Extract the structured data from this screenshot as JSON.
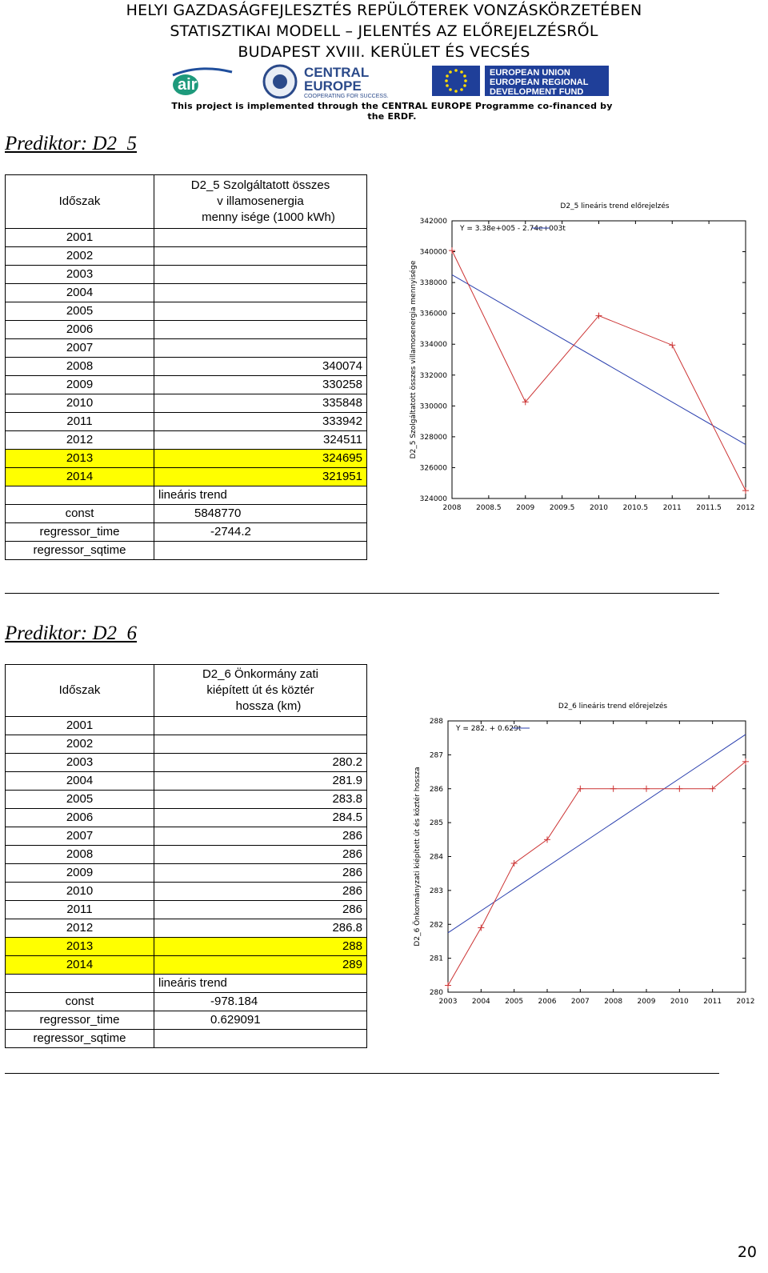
{
  "header": {
    "line1": "HELYI GAZDASÁGFEJLESZTÉS REPÜLŐTEREK VONZÁSKÖRZETÉBEN",
    "line2": "STATISZTIKAI MODELL – JELENTÉS AZ ELŐREJELZÉSRŐL",
    "line3": "BUDAPEST XVIII. KERÜLET ÉS VECSÉS",
    "logo_airled": "airLED",
    "logo_ce_1": "CENTRAL",
    "logo_ce_2": "EUROPE",
    "logo_ce_3": "COOPERATING FOR SUCCESS.",
    "logo_eu_1": "EUROPEAN UNION",
    "logo_eu_2": "EUROPEAN REGIONAL",
    "logo_eu_3": "DEVELOPMENT FUND",
    "footnote": "This project is implemented through the CENTRAL EUROPE Programme co-financed by the ERDF."
  },
  "section1": {
    "title": "Prediktor: D2_5",
    "table": {
      "col1_header": "Időszak",
      "col2_header_1": "D2_5 Szolgáltatott összes",
      "col2_header_2": "v illamosenergia",
      "col2_header_3": "menny isége (1000 kWh)",
      "rows": [
        {
          "year": "2001",
          "value": ""
        },
        {
          "year": "2002",
          "value": ""
        },
        {
          "year": "2003",
          "value": ""
        },
        {
          "year": "2004",
          "value": ""
        },
        {
          "year": "2005",
          "value": ""
        },
        {
          "year": "2006",
          "value": ""
        },
        {
          "year": "2007",
          "value": ""
        },
        {
          "year": "2008",
          "value": "340074"
        },
        {
          "year": "2009",
          "value": "330258"
        },
        {
          "year": "2010",
          "value": "335848"
        },
        {
          "year": "2011",
          "value": "333942"
        },
        {
          "year": "2012",
          "value": "324511"
        },
        {
          "year": "2013",
          "value": "324695"
        },
        {
          "year": "2014",
          "value": "321951"
        }
      ],
      "trend_label": "lineáris   trend",
      "const_label": "const",
      "const_value": "5848770",
      "regtime_label": "regressor_time",
      "regtime_value": "-2744.2",
      "regsq_label": "regressor_sqtime"
    }
  },
  "section2": {
    "title": "Prediktor: D2_6",
    "table": {
      "col1_header": "Időszak",
      "col2_header_1": "D2_6 Önkormány zati",
      "col2_header_2": "kiépített út és köztér",
      "col2_header_3": "hossza (km)",
      "rows": [
        {
          "year": "2001",
          "value": ""
        },
        {
          "year": "2002",
          "value": ""
        },
        {
          "year": "2003",
          "value": "280.2"
        },
        {
          "year": "2004",
          "value": "281.9"
        },
        {
          "year": "2005",
          "value": "283.8"
        },
        {
          "year": "2006",
          "value": "284.5"
        },
        {
          "year": "2007",
          "value": "286"
        },
        {
          "year": "2008",
          "value": "286"
        },
        {
          "year": "2009",
          "value": "286"
        },
        {
          "year": "2010",
          "value": "286"
        },
        {
          "year": "2011",
          "value": "286"
        },
        {
          "year": "2012",
          "value": "286.8"
        },
        {
          "year": "2013",
          "value": "288"
        },
        {
          "year": "2014",
          "value": "289"
        }
      ],
      "trend_label": "lineáris   trend",
      "const_label": "const",
      "const_value": "-978.184",
      "regtime_label": "regressor_time",
      "regtime_value": "0.629091",
      "regsq_label": "regressor_sqtime"
    }
  },
  "page_number": "20",
  "colors": {
    "highlight": "#ffff00",
    "data_line": "#cc3333",
    "trend_line": "#2a3fae"
  },
  "chart_data": [
    {
      "type": "line",
      "title": "D2_5 lineáris trend előrejelzés",
      "ylabel": "D2_5 Szolgáltatott összes villamosenergia mennyisége",
      "xlabel": "",
      "legend": "Y = 3.38e+005 - 2.74e+003t",
      "legend_position": "top-left",
      "xlim": [
        2008,
        2012
      ],
      "ylim": [
        324000,
        342000
      ],
      "x_ticks": [
        "2008",
        "2008.5",
        "2009",
        "2009.5",
        "2010",
        "2010.5",
        "2011",
        "2011.5",
        "2012"
      ],
      "y_ticks": [
        "324000",
        "326000",
        "328000",
        "330000",
        "332000",
        "334000",
        "336000",
        "338000",
        "340000",
        "342000"
      ],
      "series": [
        {
          "x": [
            2008,
            2009,
            2010,
            2011,
            2012
          ],
          "values": [
            340074,
            330258,
            335848,
            333942,
            324511
          ]
        }
      ],
      "trend": {
        "x": [
          2008,
          2012
        ],
        "values": [
          338500,
          327500
        ]
      }
    },
    {
      "type": "line",
      "title": "D2_6 lineáris trend előrejelzés",
      "ylabel": "D2_6 Önkormányzati kiépített út és köztér hossza",
      "xlabel": "",
      "legend": "Y = 282. + 0.629t",
      "legend_position": "top-left",
      "xlim": [
        2003,
        2012
      ],
      "ylim": [
        280,
        288
      ],
      "x_ticks": [
        "2003",
        "2004",
        "2005",
        "2006",
        "2007",
        "2008",
        "2009",
        "2010",
        "2011",
        "2012"
      ],
      "y_ticks": [
        "280",
        "281",
        "282",
        "283",
        "284",
        "285",
        "286",
        "287",
        "288"
      ],
      "series": [
        {
          "x": [
            2003,
            2004,
            2005,
            2006,
            2007,
            2008,
            2009,
            2010,
            2011,
            2012
          ],
          "values": [
            280.2,
            281.9,
            283.8,
            284.5,
            286,
            286,
            286,
            286,
            286,
            286.8
          ]
        }
      ],
      "trend": {
        "x": [
          2003,
          2012
        ],
        "values": [
          281.75,
          287.6
        ]
      }
    }
  ]
}
